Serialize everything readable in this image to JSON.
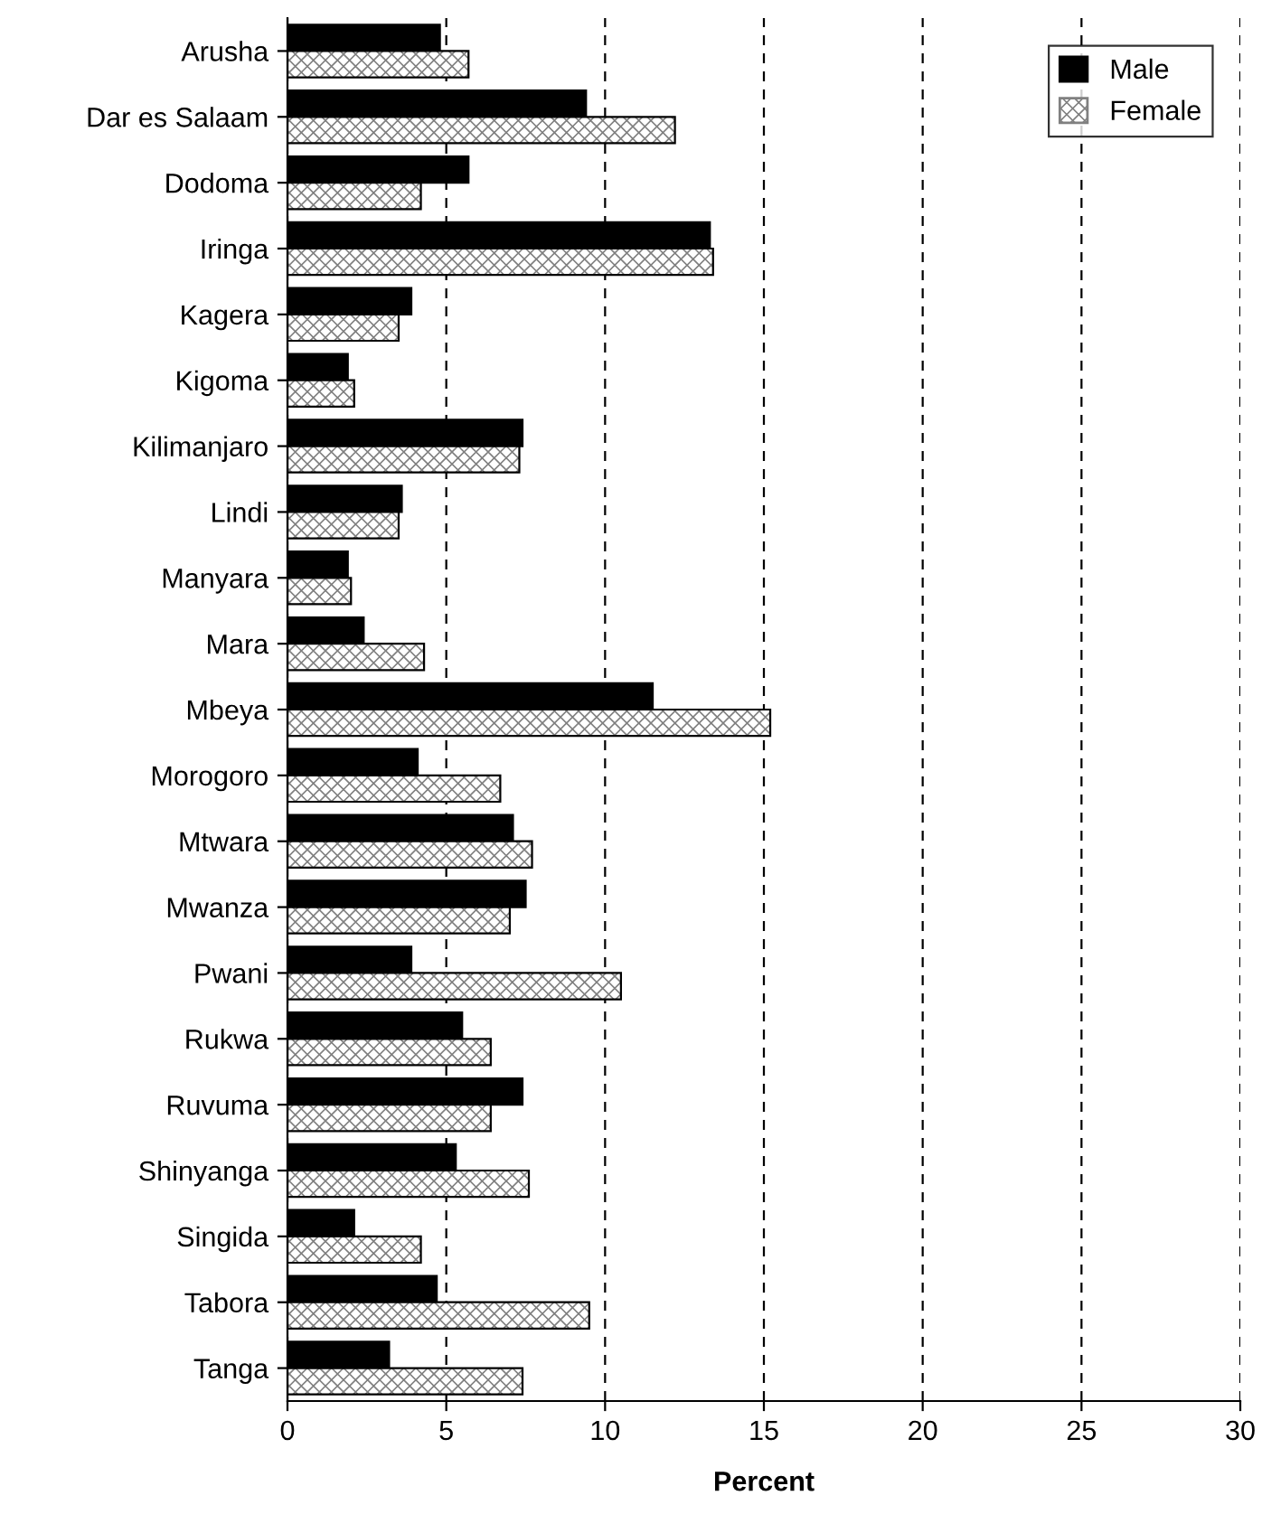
{
  "chart_data": {
    "type": "bar",
    "orientation": "horizontal",
    "xlabel": "Percent",
    "categories": [
      "Arusha",
      "Dar es Salaam",
      "Dodoma",
      "Iringa",
      "Kagera",
      "Kigoma",
      "Kilimanjaro",
      "Lindi",
      "Manyara",
      "Mara",
      "Mbeya",
      "Morogoro",
      "Mtwara",
      "Mwanza",
      "Pwani",
      "Rukwa",
      "Ruvuma",
      "Shinyanga",
      "Singida",
      "Tabora",
      "Tanga"
    ],
    "series": [
      {
        "name": "Male",
        "color": "#000000",
        "values": [
          4.8,
          9.4,
          5.7,
          13.3,
          3.9,
          1.9,
          7.4,
          3.6,
          1.9,
          2.4,
          11.5,
          4.1,
          7.1,
          7.5,
          3.9,
          5.5,
          7.4,
          5.3,
          2.1,
          4.7,
          3.2
        ]
      },
      {
        "name": "Female",
        "color": "#808080",
        "values": [
          5.7,
          12.2,
          4.2,
          13.4,
          3.5,
          2.1,
          7.3,
          3.5,
          2.0,
          4.3,
          15.2,
          6.7,
          7.7,
          7.0,
          10.5,
          6.4,
          6.4,
          7.6,
          4.2,
          9.5,
          7.4
        ]
      }
    ],
    "xlim": [
      0,
      30
    ],
    "xticks": [
      0,
      5,
      10,
      15,
      20,
      25,
      30
    ],
    "grid": "x",
    "line_style": "dashed",
    "legend": "top right"
  }
}
